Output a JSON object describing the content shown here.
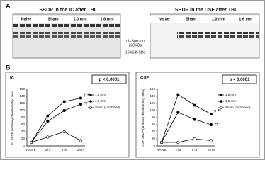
{
  "panel_a": {
    "label": "A",
    "blots": [
      {
        "title": "SBDP in the IC after TBI",
        "lanes": [
          "Naive",
          "Sham",
          "1.0 mm",
          "1.6 mm"
        ]
      },
      {
        "title": "SBDP in the CSF after TBI",
        "lanes": [
          "Naive",
          "Sham",
          "1.0 mm",
          "1.6 mm"
        ]
      }
    ],
    "markers": [
      "αII-Spectrin",
      "280 kDa",
      "150/145 kDa"
    ]
  },
  "panel_b_label": "B",
  "chart_data": [
    {
      "type": "line",
      "title": "IC",
      "p_value": "p < 0.0001",
      "y_label": "IC SBDP (arbitrary densitometry units)",
      "categories": [
        "NAIVE",
        "2 hr",
        "6 hr",
        "24 hr"
      ],
      "series": [
        {
          "name": "1.6 mm",
          "marker": "square",
          "color": "#000000",
          "values": [
            10,
            85,
            125,
            135
          ]
        },
        {
          "name": "1.0 mm",
          "marker": "circle",
          "color": "#000000",
          "values": [
            10,
            70,
            100,
            118
          ]
        },
        {
          "name": "Sham (combined)",
          "marker": "open-circle",
          "color": "#000000",
          "values": [
            10,
            25,
            40,
            15
          ]
        }
      ],
      "ylim": [
        0,
        160
      ],
      "yticks": [
        0,
        20,
        40,
        60,
        80,
        100,
        120,
        140,
        160
      ],
      "annotations": [
        "‡",
        "**",
        "**"
      ]
    },
    {
      "type": "line",
      "title": "CSF",
      "p_value": "p < 0.0001",
      "y_label": "CSF SBDP (arbitrary densitometry units)",
      "categories": [
        "NAIVE",
        "2 hr",
        "6 hr",
        "24 hr"
      ],
      "series": [
        {
          "name": "1.6 mm",
          "marker": "square",
          "color": "#000000",
          "values": [
            10,
            145,
            115,
            90
          ]
        },
        {
          "name": "1.0 mm",
          "marker": "circle",
          "color": "#000000",
          "values": [
            10,
            95,
            75,
            60
          ]
        },
        {
          "name": "Sham (combined)",
          "marker": "open-circle",
          "color": "#000000",
          "values": [
            10,
            10,
            20,
            15
          ]
        }
      ],
      "ylim": [
        0,
        160
      ],
      "yticks": [
        0,
        20,
        40,
        60,
        80,
        100,
        120,
        140,
        160
      ],
      "annotations": [
        "‡",
        "**",
        "**"
      ]
    }
  ]
}
